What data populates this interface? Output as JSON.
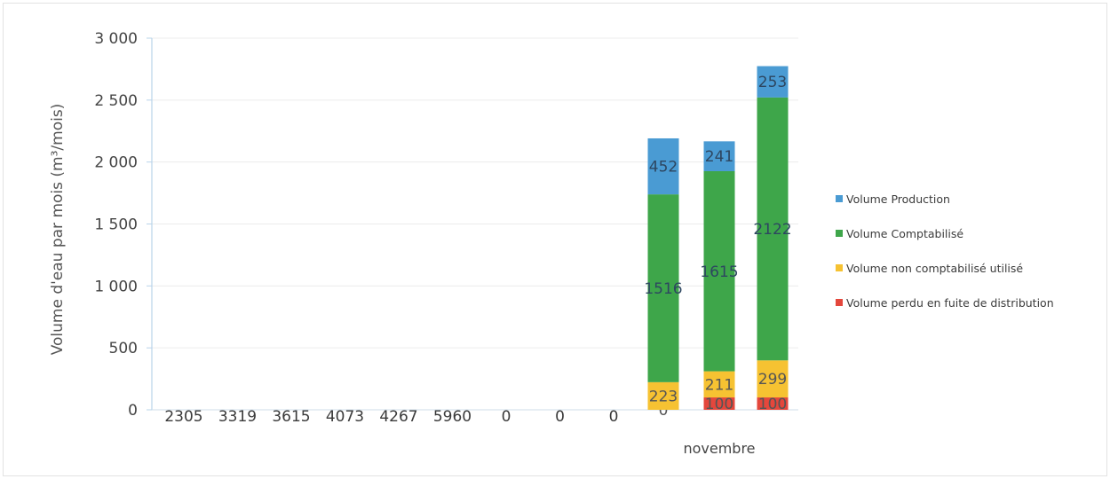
{
  "chart_data": {
    "type": "bar",
    "stacked": true,
    "ylabel": "Volume d'eau par mois (m³/mois)",
    "ylim": [
      0,
      3000
    ],
    "yticks": [
      "3 000",
      "2 500",
      "2 000",
      "1 500",
      "1 000",
      "500",
      "0"
    ],
    "ytick_values": [
      3000,
      2500,
      2000,
      1500,
      1000,
      500,
      0
    ],
    "x_category_label": "novembre",
    "grid": true,
    "legend_position": "right",
    "series": [
      {
        "name": "Volume Production",
        "color": "#4a9bd3"
      },
      {
        "name": "Volume Comptabilisé",
        "color": "#3ea64a"
      },
      {
        "name": "Volume non comptabilisé utilisé",
        "color": "#f6c232"
      },
      {
        "name": "Volume perdu  en fuite de distribution",
        "color": "#e4473c"
      }
    ],
    "bars": [
      {
        "stack": [
          {
            "series": 3,
            "value": 0,
            "label": "0"
          },
          {
            "series": 2,
            "value": 223,
            "label": "223"
          },
          {
            "series": 1,
            "value": 1516,
            "label": "1516"
          },
          {
            "series": 0,
            "value": 452,
            "label": "452"
          }
        ]
      },
      {
        "stack": [
          {
            "series": 3,
            "value": 100,
            "label": "100"
          },
          {
            "series": 2,
            "value": 211,
            "label": "211"
          },
          {
            "series": 1,
            "value": 1615,
            "label": "1615"
          },
          {
            "series": 0,
            "value": 241,
            "label": "241"
          }
        ]
      },
      {
        "stack": [
          {
            "series": 3,
            "value": 100,
            "label": "100"
          },
          {
            "series": 2,
            "value": 299,
            "label": "299"
          },
          {
            "series": 1,
            "value": 2122,
            "label": "2122"
          },
          {
            "series": 0,
            "value": 253,
            "label": "253"
          }
        ]
      }
    ],
    "baseline_labels": [
      "2305",
      "3319",
      "3615",
      "4073",
      "4267",
      "5960",
      "0",
      "0",
      "0"
    ]
  }
}
